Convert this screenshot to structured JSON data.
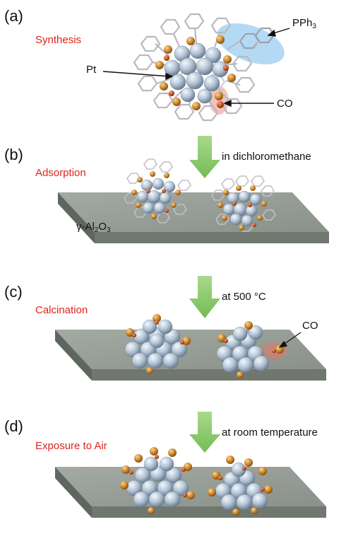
{
  "panels": [
    {
      "letter": "(a)",
      "step": "Synthesis"
    },
    {
      "letter": "(b)",
      "step": "Adsorption",
      "condition": "in dichloromethane"
    },
    {
      "letter": "(c)",
      "step": "Calcination",
      "condition_prefix": "at 500 ",
      "condition_unit": "°C"
    },
    {
      "letter": "(d)",
      "step": "Exposure to Air",
      "condition": "at room temperature"
    }
  ],
  "labels": {
    "pph3_main": "PPh",
    "pph3_sub": "3",
    "pt": "Pt",
    "co": "CO",
    "co_c": "CO",
    "support_prefix": "γ-Al",
    "support_sub1": "2",
    "support_mid": "O",
    "support_sub2": "3"
  },
  "colors": {
    "step_text": "#e0231a",
    "arrow": "#8dc96b",
    "slab_top": "#9aa19a",
    "slab_front": "#6f776f",
    "pt_atom": "#b7c6d8",
    "co_atom": "#c9872e",
    "ligand": "#c8c8cc",
    "pph3_highlight": "#8cc4ee",
    "co_highlight": "#f0a6a0"
  }
}
